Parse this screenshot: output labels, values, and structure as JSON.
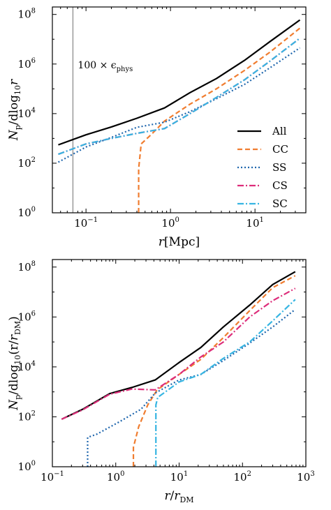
{
  "chart_data": [
    {
      "type": "line",
      "xscale": "log",
      "yscale": "log",
      "xlim": [
        0.04,
        40
      ],
      "ylim": [
        1,
        200000000
      ],
      "xticks": [
        {
          "v": 0.1,
          "base": "10",
          "exp": "−1"
        },
        {
          "v": 1,
          "base": "10",
          "exp": "0"
        },
        {
          "v": 10,
          "base": "10",
          "exp": "1"
        }
      ],
      "yticks": [
        {
          "v": 1,
          "base": "10",
          "exp": "0"
        },
        {
          "v": 100,
          "base": "10",
          "exp": "2"
        },
        {
          "v": 10000,
          "base": "10",
          "exp": "4"
        },
        {
          "v": 1000000,
          "base": "10",
          "exp": "6"
        },
        {
          "v": 100000000,
          "base": "10",
          "exp": "8"
        }
      ],
      "xlabel": {
        "main": "r",
        "rest": "[Mpc]"
      },
      "ylabel": {
        "a": "N",
        "a_sub": "p",
        "b": "/dlog",
        "b_sub": "10",
        "c": "r"
      },
      "vline": {
        "x": 0.07,
        "label": "100 × ϵ",
        "label_sub": "phys"
      },
      "legend": "right",
      "series": [
        {
          "name": "All",
          "color": "#000000",
          "dash": "",
          "x": [
            0.047,
            0.1,
            0.2,
            0.4,
            0.85,
            1.7,
            3.5,
            7.5,
            15,
            34
          ],
          "y": [
            550,
            1400,
            2900,
            6500,
            17000,
            70000,
            260000,
            1400000,
            8000000,
            60000000
          ]
        },
        {
          "name": "CC",
          "color": "#f07d30",
          "dash": "7,4",
          "x": [
            0.42,
            0.42,
            0.45,
            0.6,
            0.85,
            1.7,
            3.5,
            7.5,
            15,
            34
          ],
          "y": [
            1,
            60,
            600,
            1500,
            5000,
            24000,
            100000,
            550000,
            3000000,
            28000000
          ]
        },
        {
          "name": "SS",
          "color": "#1f66ad",
          "dash": "2,3",
          "x": [
            0.047,
            0.1,
            0.2,
            0.4,
            0.85,
            1.7,
            3.5,
            7.5,
            15,
            34
          ],
          "y": [
            110,
            450,
            1100,
            2800,
            4500,
            12000,
            40000,
            150000,
            700000,
            4500000
          ]
        },
        {
          "name": "CS",
          "color": "#dd2d7a",
          "dash": "9,3,2,3",
          "x": [
            0.047,
            0.1,
            0.2,
            0.4,
            0.85,
            1.7,
            3.5,
            7.5,
            15,
            34
          ],
          "y": [
            230,
            600,
            1000,
            1600,
            2500,
            10000,
            45000,
            230000,
            1300000,
            11000000
          ]
        },
        {
          "name": "SC",
          "color": "#37b5e2",
          "dash": "9,3,2,3",
          "x": [
            0.047,
            0.1,
            0.2,
            0.4,
            0.85,
            1.7,
            3.5,
            7.5,
            15,
            34
          ],
          "y": [
            230,
            600,
            1000,
            1600,
            2500,
            10000,
            45000,
            230000,
            1300000,
            11000000
          ]
        }
      ]
    },
    {
      "type": "line",
      "xscale": "log",
      "yscale": "log",
      "xlim": [
        0.1,
        1000
      ],
      "ylim": [
        1,
        200000000
      ],
      "xticks": [
        {
          "v": 0.1,
          "base": "10",
          "exp": "−1"
        },
        {
          "v": 1,
          "base": "10",
          "exp": "0"
        },
        {
          "v": 10,
          "base": "10",
          "exp": "1"
        },
        {
          "v": 100,
          "base": "10",
          "exp": "2"
        },
        {
          "v": 1000,
          "base": "10",
          "exp": "3"
        }
      ],
      "yticks": [
        {
          "v": 1,
          "base": "10",
          "exp": "0"
        },
        {
          "v": 100,
          "base": "10",
          "exp": "2"
        },
        {
          "v": 10000,
          "base": "10",
          "exp": "4"
        },
        {
          "v": 1000000,
          "base": "10",
          "exp": "6"
        },
        {
          "v": 100000000,
          "base": "10",
          "exp": "8"
        }
      ],
      "xlabel": {
        "main": "r",
        "rest": "/",
        "main2": "r",
        "main2_sub": "DM"
      },
      "ylabel": {
        "a": "N",
        "a_sub": "p",
        "b": "/dlog",
        "b_sub": "10",
        "c": "(r",
        "d": "/",
        "e": "r",
        "e_sub": "DM",
        "f": ")"
      },
      "series": [
        {
          "name": "All",
          "color": "#000000",
          "dash": "",
          "x": [
            0.14,
            0.3,
            0.8,
            1.8,
            4.2,
            10,
            22,
            50,
            130,
            300,
            680
          ],
          "y": [
            80,
            200,
            850,
            1500,
            3000,
            15000,
            60000,
            400000,
            3000000,
            20000000,
            65000000
          ]
        },
        {
          "name": "CC",
          "color": "#f07d30",
          "dash": "7,4",
          "x": [
            1.9,
            1.9,
            2.3,
            3.2,
            4.5,
            10,
            22,
            50,
            130,
            300,
            680
          ],
          "y": [
            1,
            6,
            40,
            300,
            1200,
            5000,
            20000,
            150000,
            1800000,
            15000000,
            45000000
          ]
        },
        {
          "name": "SS",
          "color": "#1f66ad",
          "dash": "2,3",
          "x": [
            0.36,
            0.36,
            0.5,
            1.1,
            2.5,
            4.2,
            10,
            22,
            50,
            130,
            300,
            680
          ],
          "y": [
            1,
            15,
            20,
            60,
            200,
            900,
            3000,
            5000,
            18000,
            90000,
            400000,
            2000000
          ]
        },
        {
          "name": "CS",
          "color": "#dd2d7a",
          "dash": "9,3,2,3",
          "x": [
            0.14,
            0.3,
            0.8,
            1.8,
            4.2,
            10,
            22,
            50,
            130,
            300,
            680
          ],
          "y": [
            80,
            190,
            800,
            1300,
            1200,
            5000,
            25000,
            100000,
            1000000,
            4500000,
            14000000
          ]
        },
        {
          "name": "SC",
          "color": "#37b5e2",
          "dash": "9,3,2,3",
          "x": [
            4.3,
            4.3,
            4.6,
            10,
            22,
            50,
            130,
            300,
            680
          ],
          "y": [
            1,
            300,
            600,
            2500,
            5000,
            22000,
            100000,
            700000,
            5000000
          ]
        }
      ]
    }
  ]
}
